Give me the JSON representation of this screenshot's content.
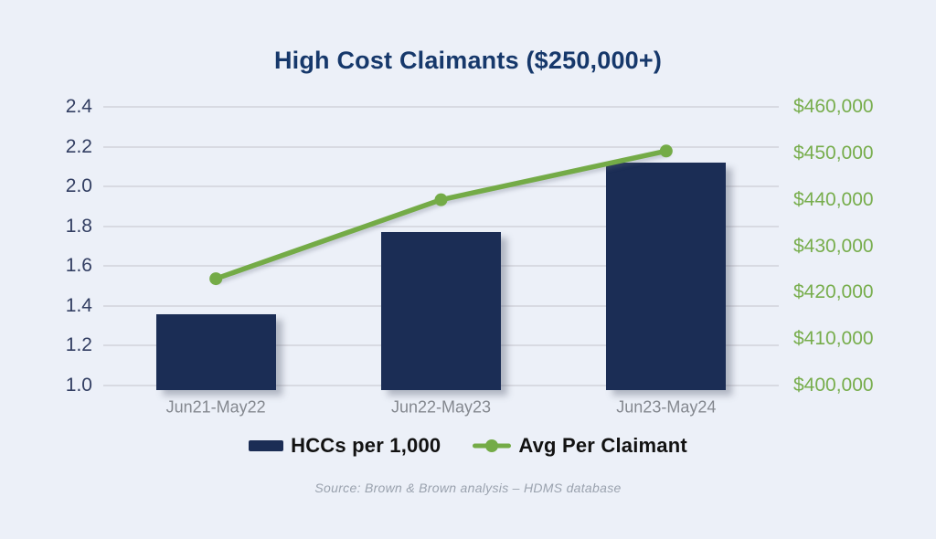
{
  "title": "High Cost Claimants ($250,000+)",
  "source": "Source: Brown & Brown analysis – HDMS database",
  "colors": {
    "background": "#ecf0f8",
    "bar": "#1b2d55",
    "line": "#74ab47",
    "title_text": "#16386b",
    "left_axis_text": "#323e62",
    "right_axis_text": "#77ad4c",
    "x_axis_text": "#84888f",
    "gridline": "#d8dae2",
    "legend_text": "#121212",
    "source_text": "#9aa2ae"
  },
  "chart_data": {
    "type": "bar",
    "subtype": "combo-bar-line",
    "title": "High Cost Claimants ($250,000+)",
    "categories": [
      "Jun21-May22",
      "Jun22-May23",
      "Jun23-May24"
    ],
    "series": [
      {
        "name": "HCCs per 1,000",
        "type": "bar",
        "axis": "left",
        "values": [
          1.36,
          1.77,
          2.12
        ],
        "color": "#1b2d55"
      },
      {
        "name": "Avg Per Claimant",
        "type": "line",
        "axis": "right",
        "values": [
          423000,
          440000,
          450500
        ],
        "color": "#74ab47"
      }
    ],
    "left_axis": {
      "min": 1.0,
      "max": 2.4,
      "ticks": [
        "2.4",
        "2.2",
        "2.0",
        "1.8",
        "1.6",
        "1.4",
        "1.2",
        "1.0"
      ]
    },
    "right_axis": {
      "min": 400000,
      "max": 460000,
      "ticks": [
        "$460,000",
        "$450,000",
        "$440,000",
        "$430,000",
        "$420,000",
        "$410,000",
        "$400,000"
      ]
    },
    "grid": true,
    "legend_position": "bottom"
  }
}
